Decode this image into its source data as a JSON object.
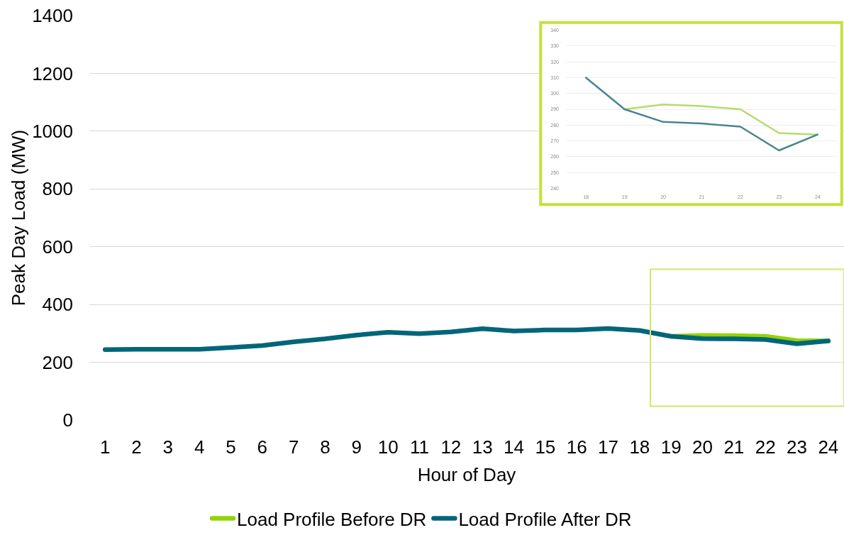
{
  "chart_data": [
    {
      "type": "line",
      "xlabel": "Hour of Day",
      "ylabel": "Peak Day Load (MW)",
      "x": [
        1,
        2,
        3,
        4,
        5,
        6,
        7,
        8,
        9,
        10,
        11,
        12,
        13,
        14,
        15,
        16,
        17,
        18,
        19,
        20,
        21,
        22,
        23,
        24
      ],
      "xlim": [
        0.5,
        24.5
      ],
      "xticks": [
        1,
        2,
        3,
        4,
        5,
        6,
        7,
        8,
        9,
        10,
        11,
        12,
        13,
        14,
        15,
        16,
        17,
        18,
        19,
        20,
        21,
        22,
        23,
        24
      ],
      "ylim": [
        0,
        1400
      ],
      "yticks": [
        0,
        200,
        400,
        600,
        800,
        1000,
        1200,
        1400
      ],
      "grid": "y",
      "legend": "bottom",
      "series": [
        {
          "name": "Load Profile Before DR",
          "color": "#92d400",
          "values": [
            null,
            null,
            null,
            null,
            null,
            null,
            null,
            null,
            null,
            null,
            null,
            null,
            null,
            null,
            null,
            null,
            null,
            null,
            290,
            293,
            292,
            290,
            275,
            274
          ]
        },
        {
          "name": "Load Profile After DR",
          "color": "#02667a",
          "values": [
            244,
            245,
            245,
            245,
            251,
            258,
            271,
            281,
            294,
            304,
            299,
            305,
            316,
            308,
            312,
            312,
            317,
            310,
            290,
            282,
            281,
            279,
            264,
            274
          ]
        }
      ]
    },
    {
      "type": "line",
      "x": [
        18,
        19,
        20,
        21,
        22,
        23,
        24
      ],
      "xlim": [
        17.5,
        24.5
      ],
      "xticks": [
        18,
        19,
        20,
        21,
        22,
        23,
        24
      ],
      "ylim": [
        240,
        340
      ],
      "yticks": [
        240,
        250,
        260,
        270,
        280,
        290,
        300,
        310,
        320,
        330,
        340
      ],
      "grid": "y",
      "series": [
        {
          "color": "#b4dc6a",
          "values": [
            null,
            290,
            293,
            292,
            290,
            275,
            274
          ]
        },
        {
          "color": "#4a8491",
          "values": [
            310,
            290,
            282,
            281,
            279,
            264,
            274
          ]
        }
      ]
    }
  ]
}
